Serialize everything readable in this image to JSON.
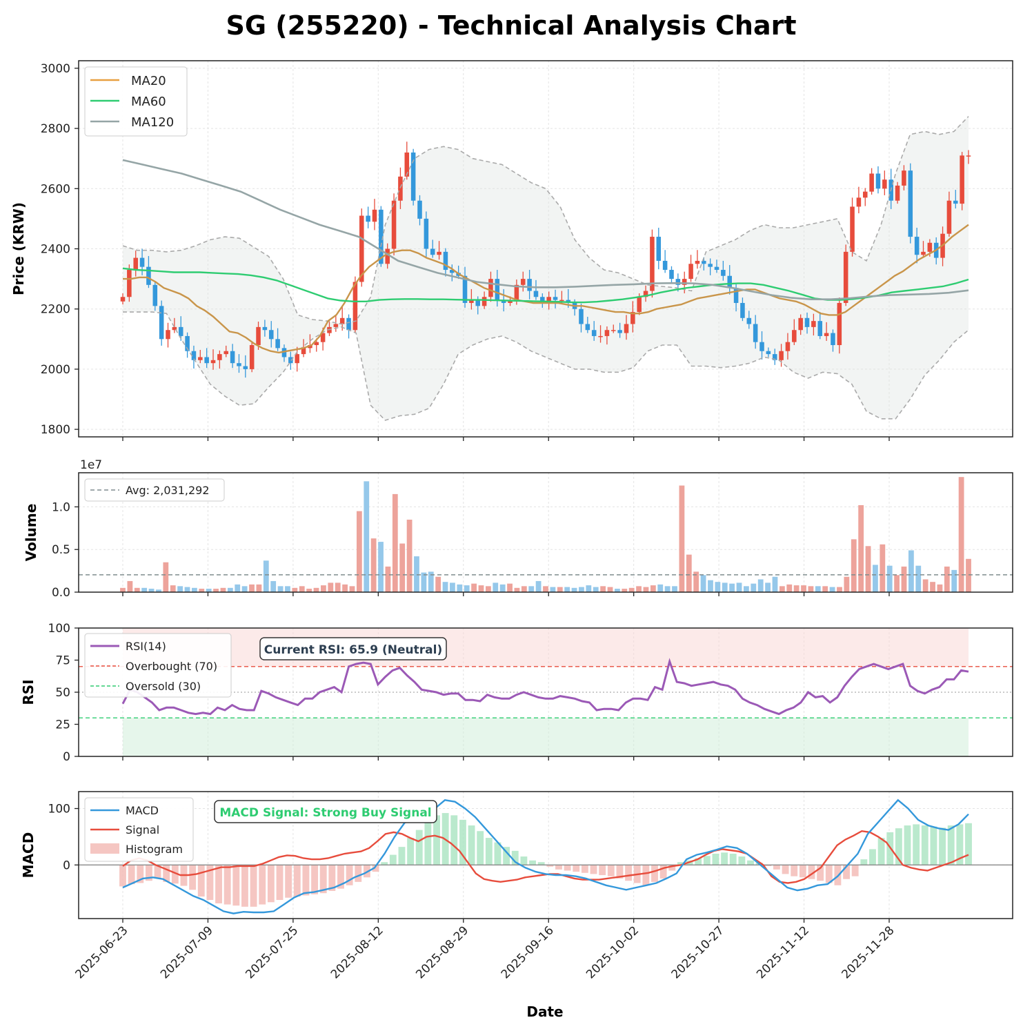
{
  "chart_data": {
    "type": "candlestick-multipanel",
    "title": "SG (255220) - Technical Analysis Chart",
    "xlabel": "Date",
    "x_ticks": [
      "2025-06-23",
      "2025-07-09",
      "2025-07-25",
      "2025-08-12",
      "2025-08-29",
      "2025-09-16",
      "2025-10-02",
      "2025-10-27",
      "2025-11-12",
      "2025-11-28"
    ],
    "colors": {
      "up": "#e74c3c",
      "down": "#3498db",
      "ma20": "#e8a040",
      "ma60": "#2ecc71",
      "ma120": "#95a5a6",
      "bb": "#aaaaaa",
      "rsi": "#9b59b6",
      "macd": "#3498db",
      "signal": "#e74c3c",
      "hist_pos": "#a9e4c1",
      "hist_neg": "#f2b8b3",
      "avg": "#7f8c8d"
    },
    "price_panel": {
      "ylabel": "Price (KRW)",
      "ylim": [
        1775,
        3025
      ],
      "yticks": [
        1800,
        2000,
        2200,
        2400,
        2600,
        2800,
        3000
      ],
      "legend": [
        "MA20",
        "MA60",
        "MA120"
      ],
      "close": [
        2240,
        2330,
        2370,
        2340,
        2280,
        2210,
        2100,
        2130,
        2140,
        2110,
        2060,
        2030,
        2040,
        2020,
        2030,
        2050,
        2060,
        2020,
        2010,
        2000,
        2080,
        2140,
        2130,
        2100,
        2070,
        2040,
        2020,
        2050,
        2070,
        2080,
        2090,
        2120,
        2140,
        2150,
        2170,
        2130,
        2290,
        2510,
        2490,
        2530,
        2350,
        2400,
        2560,
        2640,
        2720,
        2560,
        2500,
        2400,
        2380,
        2390,
        2330,
        2320,
        2310,
        2220,
        2230,
        2210,
        2240,
        2300,
        2230,
        2220,
        2230,
        2280,
        2300,
        2260,
        2240,
        2220,
        2240,
        2230,
        2230,
        2220,
        2200,
        2150,
        2130,
        2110,
        2110,
        2130,
        2130,
        2120,
        2150,
        2190,
        2240,
        2260,
        2440,
        2360,
        2330,
        2300,
        2280,
        2300,
        2350,
        2360,
        2350,
        2340,
        2330,
        2310,
        2270,
        2220,
        2170,
        2150,
        2090,
        2060,
        2050,
        2030,
        2060,
        2090,
        2130,
        2170,
        2140,
        2160,
        2110,
        2120,
        2080,
        2220,
        2390,
        2540,
        2570,
        2590,
        2650,
        2600,
        2630,
        2560,
        2610,
        2660,
        2440,
        2380,
        2390,
        2420,
        2370,
        2450,
        2560,
        2550,
        2710,
        2710
      ],
      "ma20": [
        2300,
        2300,
        2305,
        2305,
        2290,
        2270,
        2260,
        2250,
        2235,
        2210,
        2195,
        2175,
        2150,
        2125,
        2120,
        2105,
        2085,
        2070,
        2060,
        2055,
        2060,
        2065,
        2070,
        2080,
        2110,
        2160,
        2180,
        2220,
        2270,
        2310,
        2340,
        2360,
        2380,
        2390,
        2395,
        2395,
        2385,
        2370,
        2360,
        2350,
        2335,
        2315,
        2300,
        2285,
        2270,
        2260,
        2250,
        2240,
        2230,
        2225,
        2220,
        2220,
        2220,
        2220,
        2215,
        2210,
        2210,
        2205,
        2200,
        2195,
        2190,
        2190,
        2185,
        2185,
        2190,
        2200,
        2205,
        2210,
        2215,
        2225,
        2235,
        2240,
        2245,
        2250,
        2255,
        2260,
        2265,
        2265,
        2255,
        2245,
        2235,
        2230,
        2225,
        2215,
        2200,
        2185,
        2180,
        2180,
        2190,
        2210,
        2230,
        2250,
        2270,
        2290,
        2310,
        2325,
        2345,
        2365,
        2380,
        2395,
        2415,
        2440,
        2460,
        2480
      ],
      "ma60": [
        2335,
        2330,
        2328,
        2325,
        2322,
        2322,
        2322,
        2320,
        2318,
        2316,
        2312,
        2305,
        2295,
        2280,
        2265,
        2250,
        2235,
        2228,
        2225,
        2225,
        2230,
        2232,
        2233,
        2233,
        2232,
        2232,
        2231,
        2230,
        2230,
        2229,
        2228,
        2227,
        2226,
        2225,
        2224,
        2222,
        2222,
        2224,
        2228,
        2232,
        2238,
        2245,
        2255,
        2263,
        2270,
        2275,
        2280,
        2283,
        2285,
        2285,
        2280,
        2270,
        2260,
        2248,
        2235,
        2230,
        2230,
        2233,
        2238,
        2245,
        2255,
        2260,
        2265,
        2270,
        2275,
        2285,
        2298
      ],
      "ma120": [
        2695,
        2680,
        2665,
        2650,
        2630,
        2610,
        2590,
        2560,
        2530,
        2505,
        2480,
        2460,
        2440,
        2400,
        2360,
        2340,
        2320,
        2305,
        2290,
        2282,
        2275,
        2272,
        2272,
        2274,
        2277,
        2280,
        2282,
        2285,
        2286,
        2285,
        2280,
        2270,
        2258,
        2246,
        2237,
        2232,
        2232,
        2236,
        2242,
        2246,
        2248,
        2250,
        2254,
        2262
      ],
      "bb_upper": [
        2410,
        2395,
        2395,
        2390,
        2395,
        2410,
        2430,
        2440,
        2435,
        2405,
        2375,
        2300,
        2180,
        2165,
        2160,
        2150,
        2160,
        2240,
        2480,
        2600,
        2700,
        2730,
        2740,
        2730,
        2700,
        2690,
        2680,
        2650,
        2620,
        2600,
        2540,
        2430,
        2370,
        2330,
        2320,
        2300,
        2280,
        2275,
        2270,
        2260,
        2390,
        2410,
        2430,
        2460,
        2480,
        2470,
        2470,
        2480,
        2490,
        2500,
        2390,
        2360,
        2480,
        2650,
        2780,
        2790,
        2780,
        2790,
        2840
      ],
      "bb_lower": [
        2190,
        2190,
        2190,
        2185,
        2100,
        2025,
        1950,
        1910,
        1880,
        1885,
        1940,
        1990,
        2060,
        2100,
        2130,
        2140,
        2120,
        1880,
        1830,
        1845,
        1850,
        1870,
        1950,
        2050,
        2080,
        2100,
        2110,
        2090,
        2060,
        2040,
        2020,
        2000,
        2000,
        1990,
        1990,
        2005,
        2060,
        2080,
        2080,
        2010,
        2010,
        2005,
        2010,
        2020,
        2040,
        2030,
        1990,
        1970,
        1990,
        1985,
        1950,
        1860,
        1835,
        1835,
        1900,
        1980,
        2030,
        2090,
        2130
      ]
    },
    "volume_panel": {
      "ylabel": "Volume",
      "scale_label": "1e7",
      "ylim": [
        0,
        1.4
      ],
      "yticks": [
        "0.0",
        "0.5",
        "1.0"
      ],
      "avg_label": "Avg: 2,031,292",
      "avg": 0.2031292,
      "values": [
        0.05,
        0.13,
        0.05,
        0.05,
        0.04,
        0.03,
        0.35,
        0.08,
        0.07,
        0.06,
        0.05,
        0.04,
        0.04,
        0.04,
        0.05,
        0.05,
        0.09,
        0.07,
        0.09,
        0.09,
        0.37,
        0.13,
        0.07,
        0.07,
        0.05,
        0.07,
        0.04,
        0.05,
        0.08,
        0.11,
        0.11,
        0.09,
        0.07,
        0.95,
        1.3,
        0.63,
        0.59,
        0.3,
        1.15,
        0.57,
        0.85,
        0.42,
        0.23,
        0.24,
        0.18,
        0.12,
        0.11,
        0.09,
        0.08,
        0.1,
        0.08,
        0.07,
        0.11,
        0.09,
        0.1,
        0.05,
        0.07,
        0.07,
        0.13,
        0.07,
        0.06,
        0.06,
        0.06,
        0.05,
        0.06,
        0.08,
        0.06,
        0.07,
        0.06,
        0.04,
        0.04,
        0.05,
        0.07,
        0.06,
        0.08,
        0.09,
        0.07,
        0.07,
        1.25,
        0.44,
        0.24,
        0.2,
        0.14,
        0.12,
        0.11,
        0.1,
        0.11,
        0.07,
        0.1,
        0.15,
        0.11,
        0.18,
        0.07,
        0.09,
        0.08,
        0.08,
        0.07,
        0.07,
        0.07,
        0.06,
        0.06,
        0.18,
        0.62,
        1.02,
        0.54,
        0.32,
        0.56,
        0.31,
        0.2,
        0.3,
        0.49,
        0.31,
        0.15,
        0.12,
        0.09,
        0.3,
        0.26,
        1.35,
        0.39
      ]
    },
    "rsi_panel": {
      "ylabel": "RSI",
      "ylim": [
        0,
        100
      ],
      "yticks": [
        0,
        25,
        50,
        75,
        100
      ],
      "legend": [
        "RSI(14)",
        "Overbought (70)",
        "Oversold (30)"
      ],
      "annotation": "Current RSI: 65.9 (Neutral)",
      "values": [
        41,
        52,
        50,
        46,
        42,
        36,
        38,
        38,
        36,
        34,
        33,
        34,
        33,
        38,
        36,
        40,
        37,
        36,
        36,
        51,
        49,
        46,
        44,
        42,
        40,
        45,
        45,
        50,
        52,
        54,
        50,
        70,
        72,
        73,
        72,
        56,
        62,
        67,
        69,
        63,
        58,
        52,
        51,
        50,
        48,
        49,
        49,
        44,
        44,
        43,
        48,
        46,
        45,
        45,
        48,
        50,
        48,
        46,
        45,
        45,
        47,
        46,
        45,
        43,
        42,
        36,
        37,
        37,
        36,
        42,
        45,
        45,
        44,
        54,
        52,
        74,
        58,
        57,
        55,
        56,
        57,
        58,
        56,
        55,
        52,
        45,
        42,
        40,
        37,
        35,
        33,
        36,
        38,
        42,
        50,
        46,
        47,
        42,
        46,
        55,
        62,
        68,
        70,
        72,
        70,
        68,
        70,
        72,
        55,
        51,
        49,
        52,
        54,
        60,
        60,
        67,
        66
      ]
    },
    "macd_panel": {
      "ylabel": "MACD",
      "ylim": [
        -95,
        130
      ],
      "yticks": [
        0,
        100
      ],
      "legend": [
        "MACD",
        "Signal",
        "Histogram"
      ],
      "annotation": "MACD Signal: Strong Buy Signal",
      "macd": [
        -40,
        -32,
        -24,
        -22,
        -25,
        -35,
        -45,
        -55,
        -62,
        -72,
        -82,
        -86,
        -83,
        -84,
        -84,
        -82,
        -70,
        -58,
        -50,
        -48,
        -44,
        -40,
        -32,
        -22,
        -15,
        -5,
        20,
        50,
        75,
        80,
        85,
        100,
        115,
        112,
        100,
        85,
        65,
        45,
        25,
        5,
        -5,
        -12,
        -16,
        -18,
        -18,
        -20,
        -24,
        -30,
        -36,
        -40,
        -44,
        -40,
        -36,
        -32,
        -24,
        -15,
        10,
        18,
        22,
        27,
        33,
        30,
        20,
        5,
        -10,
        -25,
        -40,
        -45,
        -42,
        -36,
        -34,
        -20,
        0,
        20,
        55,
        75,
        95,
        115,
        100,
        80,
        70,
        65,
        62,
        72,
        90
      ],
      "signal": [
        -2,
        8,
        12,
        8,
        0,
        -6,
        -12,
        -18,
        -18,
        -16,
        -12,
        -8,
        -4,
        -4,
        -2,
        -2,
        -2,
        2,
        8,
        14,
        17,
        16,
        12,
        10,
        10,
        12,
        16,
        20,
        22,
        24,
        30,
        42,
        55,
        58,
        55,
        48,
        42,
        50,
        52,
        48,
        38,
        25,
        5,
        -15,
        -25,
        -28,
        -30,
        -28,
        -26,
        -22,
        -20,
        -18,
        -16,
        -16,
        -20,
        -24,
        -26,
        -26,
        -26,
        -24,
        -22,
        -20,
        -18,
        -16,
        -14,
        -10,
        -5,
        -2,
        0,
        5,
        10,
        18,
        25,
        28,
        26,
        24,
        20,
        10,
        0,
        -20,
        -30,
        -32,
        -30,
        -25,
        -15,
        -5,
        15,
        35,
        45,
        52,
        60,
        58,
        50,
        40,
        20,
        0,
        -5,
        -8,
        -10,
        -5,
        0,
        5,
        12,
        18
      ],
      "histogram": [
        -38,
        -34,
        -32,
        -28,
        -24,
        -30,
        -33,
        -37,
        -44,
        -56,
        -62,
        -68,
        -70,
        -72,
        -74,
        -74,
        -70,
        -66,
        -62,
        -58,
        -56,
        -54,
        -52,
        -50,
        -46,
        -42,
        -36,
        -30,
        -22,
        -12,
        5,
        18,
        32,
        48,
        62,
        78,
        88,
        92,
        88,
        80,
        70,
        60,
        48,
        40,
        32,
        25,
        15,
        8,
        5,
        -3,
        -8,
        -10,
        -12,
        -14,
        -16,
        -18,
        -20,
        -24,
        -28,
        -32,
        -36,
        -30,
        -24,
        -10,
        5,
        8,
        12,
        16,
        20,
        22,
        20,
        15,
        8,
        4,
        -2,
        -8,
        -16,
        -20,
        -22,
        -25,
        -28,
        -32,
        -36,
        -25,
        -20,
        10,
        28,
        48,
        58,
        65,
        70,
        72,
        70,
        68,
        66,
        70,
        72,
        74
      ]
    }
  }
}
